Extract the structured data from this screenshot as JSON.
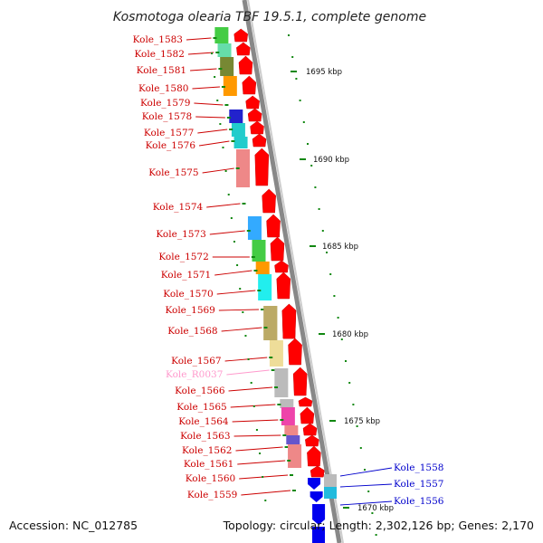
{
  "title": "Kosmotoga olearia TBF 19.5.1, complete genome",
  "footer": {
    "accession": "Accession: NC_012785",
    "stats": "Topology: circular; Length: 2,302,126 bp; Genes: 2,170"
  },
  "colors": {
    "gene_label": "#cc0000",
    "rna_label": "#ff99cc",
    "opposite_label": "#0000cc",
    "cds_arrow": "#ff0000",
    "rev_arrow": "#0000ee",
    "backbone": "#888888",
    "tick": "#118811"
  },
  "kbp_ticks": [
    "1695 kbp",
    "1690 kbp",
    "1685 kbp",
    "1680 kbp",
    "1675 kbp",
    "1670 kbp"
  ],
  "genes_forward": [
    {
      "name": "Kole_1583",
      "cog": "#44cc44"
    },
    {
      "name": "Kole_1582",
      "cog": "#66ddaa"
    },
    {
      "name": "Kole_1581",
      "cog": "#778833"
    },
    {
      "name": "Kole_1580",
      "cog": "#ff9900"
    },
    {
      "name": "Kole_1579",
      "cog": "none"
    },
    {
      "name": "Kole_1578",
      "cog": "#2222cc"
    },
    {
      "name": "Kole_1577",
      "cog": "#22cccc"
    },
    {
      "name": "Kole_1576",
      "cog": "#22cccc"
    },
    {
      "name": "Kole_1575",
      "cog": "#ee8888"
    },
    {
      "name": "Kole_1574",
      "cog": "none"
    },
    {
      "name": "Kole_1573",
      "cog": "#33aaff"
    },
    {
      "name": "Kole_1572",
      "cog": "#44cc44"
    },
    {
      "name": "Kole_1571",
      "cog": "#ff9900"
    },
    {
      "name": "Kole_1570",
      "cog": "#22eeee"
    },
    {
      "name": "Kole_1569",
      "cog": "#bbaa66"
    },
    {
      "name": "Kole_1568",
      "cog": "#bbaa66"
    },
    {
      "name": "Kole_1567",
      "cog": "#eedd99"
    },
    {
      "name": "Kole_R0037",
      "cog": "none",
      "rna": true
    },
    {
      "name": "Kole_1566",
      "cog": "#bbbbbb"
    },
    {
      "name": "Kole_1565",
      "cog": "#bbbbbb"
    },
    {
      "name": "Kole_1564",
      "cog": "#ee44aa"
    },
    {
      "name": "Kole_1563",
      "cog": "#ee8888"
    },
    {
      "name": "Kole_1562",
      "cog": "#6655cc"
    },
    {
      "name": "Kole_1561",
      "cog": "#ee8888"
    },
    {
      "name": "Kole_1560",
      "cog": "none"
    },
    {
      "name": "Kole_1559",
      "cog": "none"
    }
  ],
  "genes_reverse": [
    {
      "name": "Kole_1558"
    },
    {
      "name": "Kole_1557"
    },
    {
      "name": "Kole_1556"
    }
  ]
}
